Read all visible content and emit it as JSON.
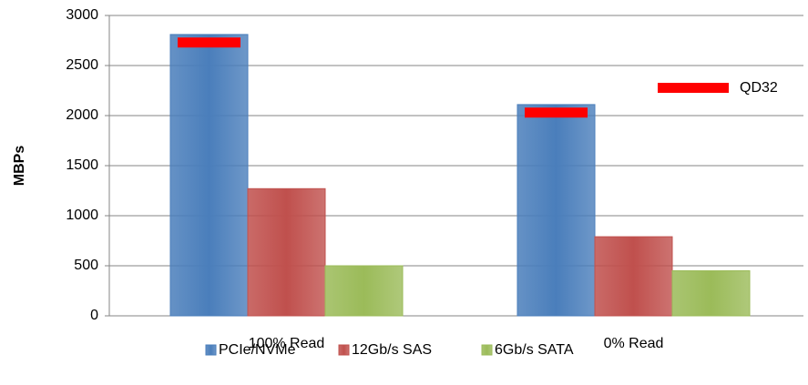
{
  "chart_data": {
    "type": "bar",
    "categories": [
      "100% Read",
      "0% Read"
    ],
    "series": [
      {
        "name": "PCIe/NVMe",
        "color": "#4a7ebb",
        "values": [
          2810,
          2110
        ]
      },
      {
        "name": "12Gb/s SAS",
        "color": "#c0504d",
        "values": [
          1270,
          790
        ]
      },
      {
        "name": "6Gb/s SATA",
        "color": "#9bbb59",
        "values": [
          500,
          450
        ]
      }
    ],
    "markers": {
      "name": "QD32",
      "color": "#ff0000",
      "values": [
        2730,
        2030
      ]
    },
    "ylabel": "MBPs",
    "ylim": [
      0,
      3000
    ],
    "yticks": [
      0,
      500,
      1000,
      1500,
      2000,
      2500,
      3000
    ],
    "grid": true,
    "legend": "bottom"
  }
}
